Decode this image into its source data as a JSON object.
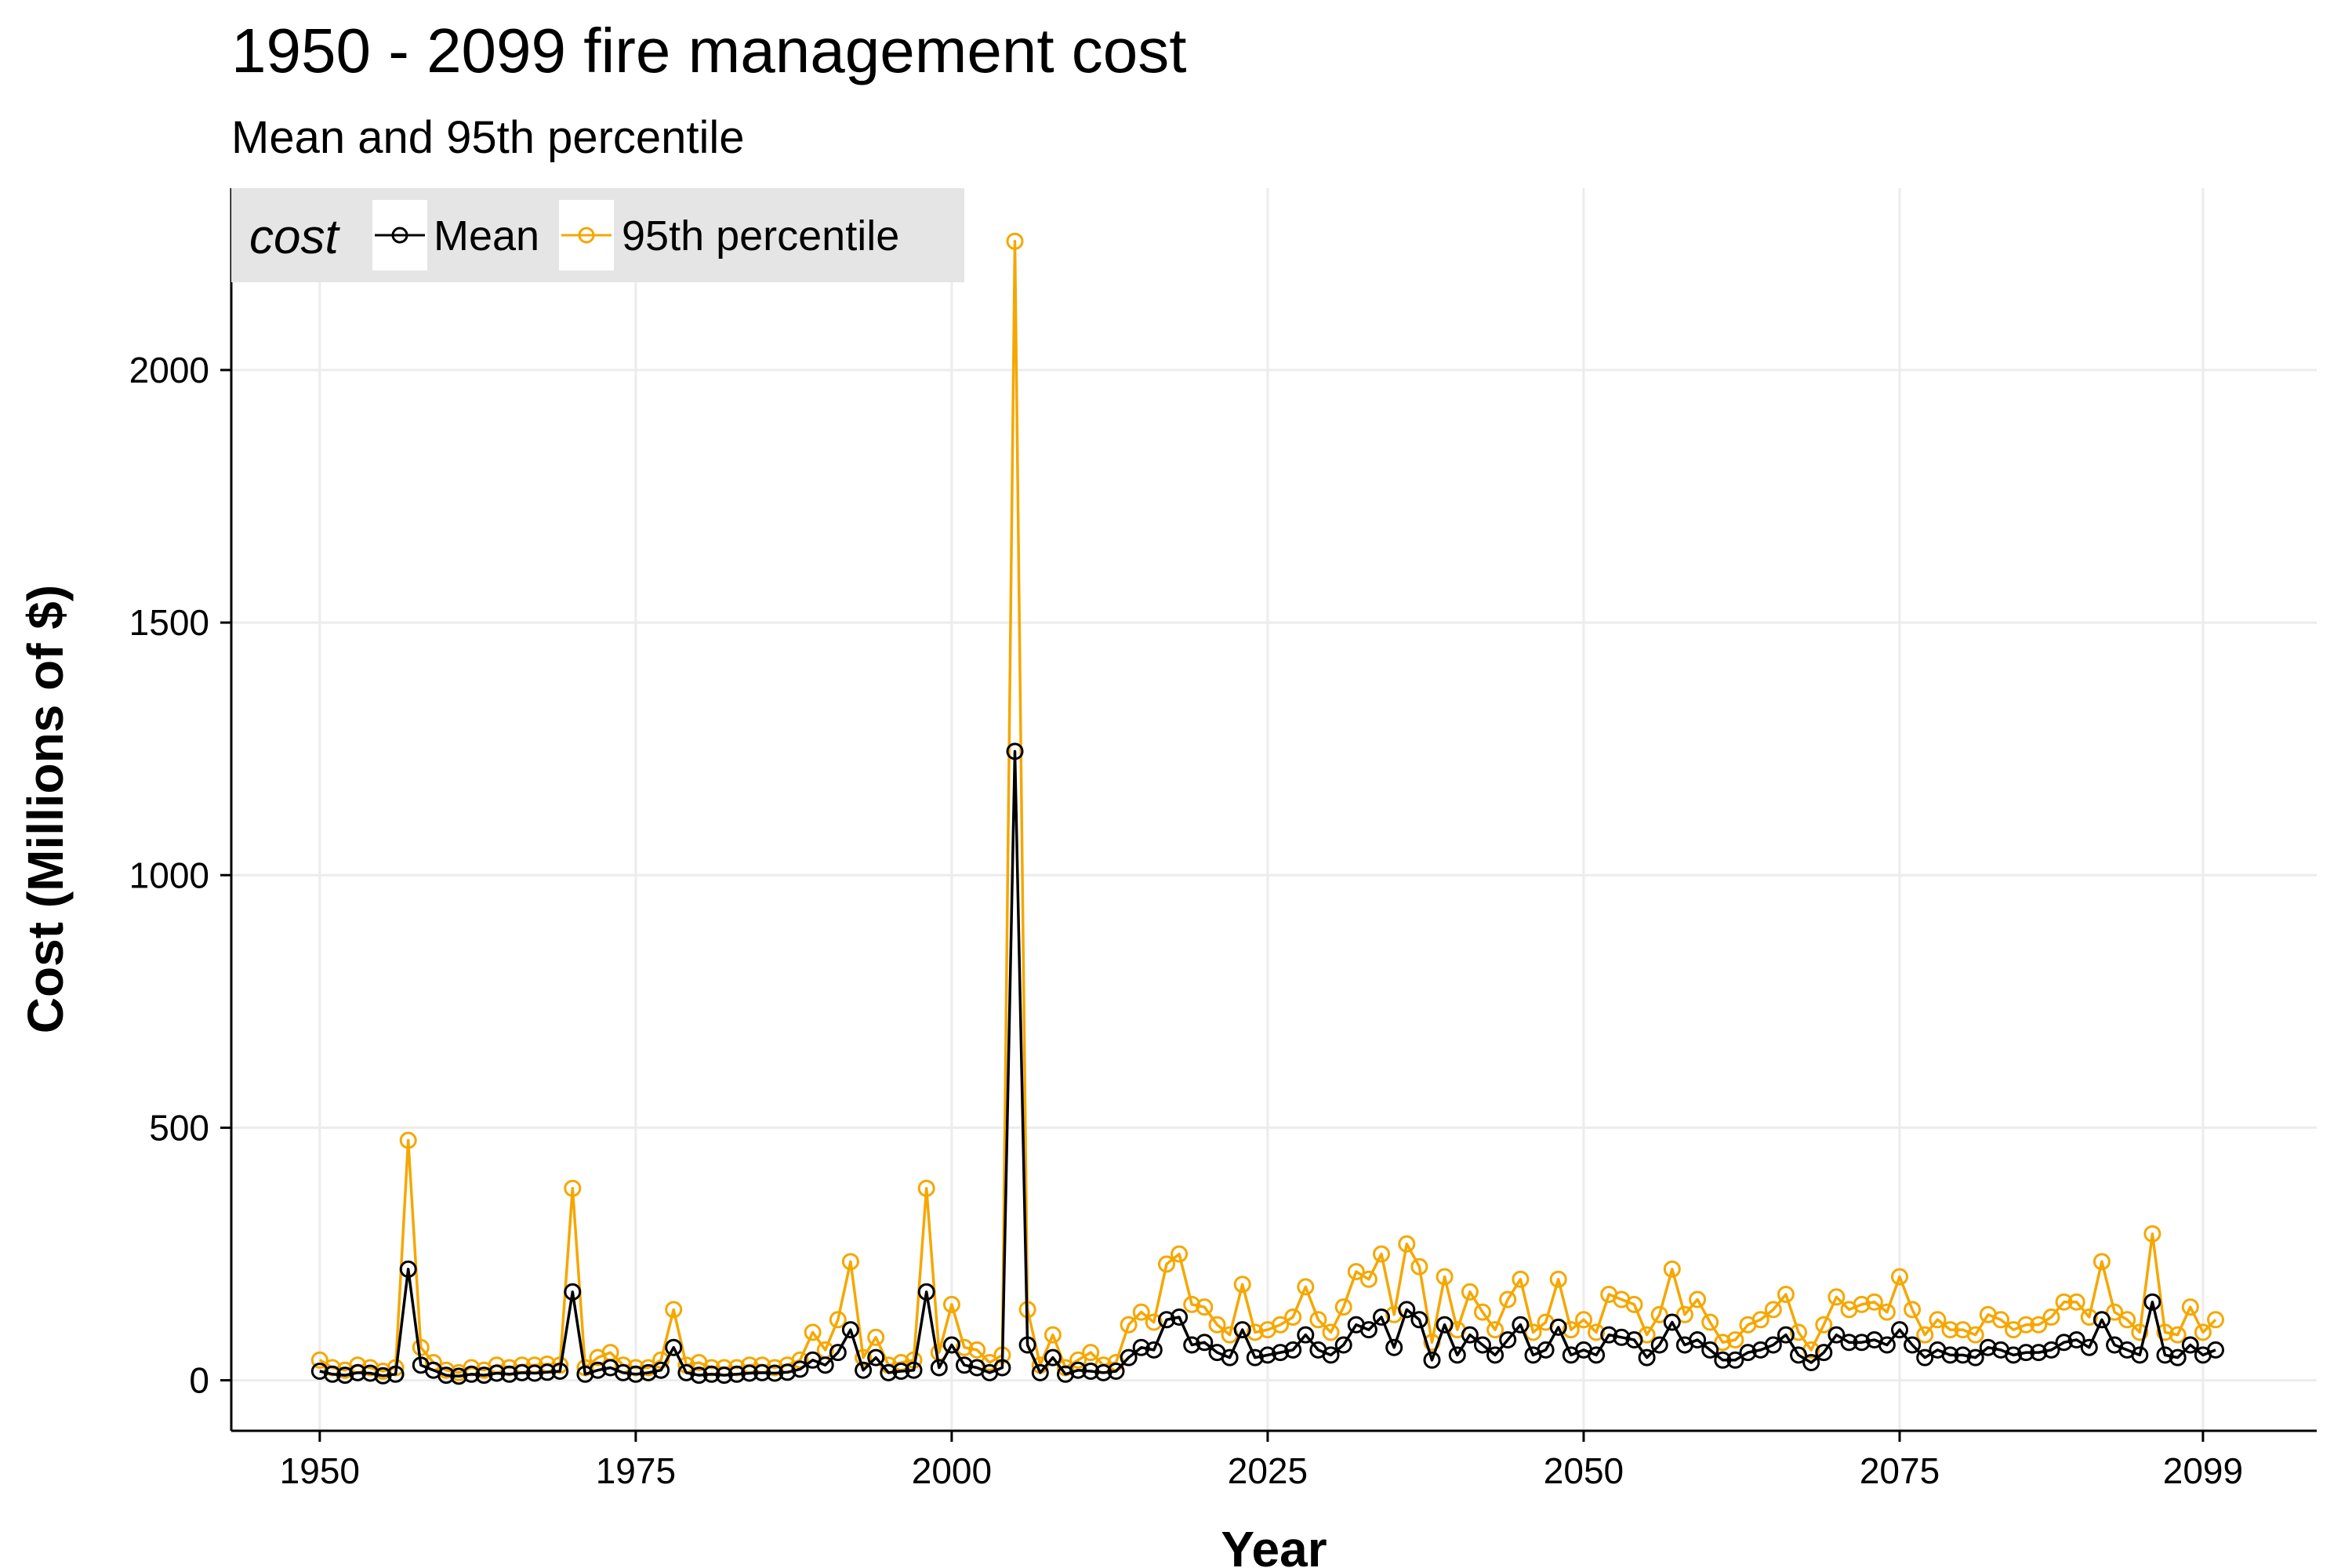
{
  "chart_data": {
    "type": "line",
    "title": "1950 - 2099 fire management cost",
    "subtitle": "Mean and 95th percentile",
    "xlabel": "Year",
    "ylabel": "Cost (Millions of $)",
    "xlim": [
      1943,
      2108
    ],
    "ylim": [
      -100,
      2360
    ],
    "x_ticks": [
      1950,
      1975,
      2000,
      2025,
      2050,
      2075,
      2099
    ],
    "y_ticks": [
      0,
      500,
      1000,
      1500,
      2000
    ],
    "grid": true,
    "legend": {
      "title": "cost",
      "position": "top-left"
    },
    "x_start": 1950,
    "series": [
      {
        "name": "Mean",
        "color": "#000000",
        "values": [
          18,
          12,
          10,
          15,
          14,
          9,
          12,
          220,
          30,
          20,
          10,
          8,
          12,
          10,
          14,
          12,
          15,
          14,
          16,
          18,
          175,
          12,
          20,
          25,
          15,
          12,
          15,
          20,
          65,
          15,
          10,
          12,
          10,
          12,
          14,
          15,
          14,
          16,
          22,
          40,
          30,
          55,
          100,
          20,
          45,
          15,
          18,
          20,
          175,
          25,
          70,
          30,
          25,
          15,
          25,
          1245,
          70,
          15,
          45,
          12,
          20,
          18,
          15,
          18,
          45,
          65,
          60,
          120,
          125,
          70,
          75,
          55,
          45,
          100,
          45,
          50,
          55,
          60,
          90,
          60,
          50,
          70,
          110,
          100,
          125,
          65,
          140,
          120,
          40,
          110,
          50,
          90,
          70,
          50,
          80,
          110,
          50,
          60,
          105,
          50,
          60,
          50,
          90,
          85,
          80,
          45,
          70,
          115,
          70,
          80,
          60,
          40,
          40,
          55,
          60,
          70,
          90,
          50,
          35,
          55,
          90,
          75,
          75,
          80,
          70,
          100,
          70,
          45,
          60,
          50,
          50,
          45,
          65,
          60,
          50,
          55,
          55,
          60,
          75,
          80,
          65,
          120,
          70,
          60,
          50,
          155,
          50,
          45,
          70,
          50,
          60
        ]
      },
      {
        "name": "95th percentile",
        "color": "#F5A700",
        "values": [
          40,
          25,
          20,
          30,
          25,
          18,
          25,
          475,
          65,
          35,
          20,
          15,
          25,
          20,
          30,
          25,
          30,
          30,
          32,
          30,
          380,
          25,
          45,
          55,
          30,
          25,
          25,
          40,
          140,
          30,
          35,
          25,
          25,
          25,
          30,
          30,
          25,
          30,
          40,
          95,
          60,
          120,
          235,
          45,
          85,
          30,
          35,
          40,
          380,
          55,
          150,
          65,
          60,
          35,
          50,
          2255,
          140,
          30,
          90,
          25,
          40,
          55,
          30,
          35,
          110,
          135,
          115,
          230,
          250,
          150,
          145,
          110,
          90,
          190,
          95,
          100,
          110,
          125,
          185,
          120,
          95,
          145,
          215,
          200,
          250,
          130,
          270,
          225,
          75,
          205,
          100,
          175,
          135,
          100,
          160,
          200,
          95,
          115,
          200,
          100,
          120,
          95,
          170,
          160,
          150,
          90,
          130,
          220,
          130,
          160,
          115,
          75,
          80,
          110,
          120,
          140,
          170,
          95,
          60,
          110,
          165,
          140,
          150,
          155,
          135,
          205,
          140,
          90,
          120,
          100,
          100,
          90,
          130,
          120,
          100,
          110,
          110,
          125,
          155,
          155,
          125,
          235,
          135,
          120,
          95,
          290,
          95,
          90,
          145,
          95,
          120
        ]
      }
    ]
  }
}
